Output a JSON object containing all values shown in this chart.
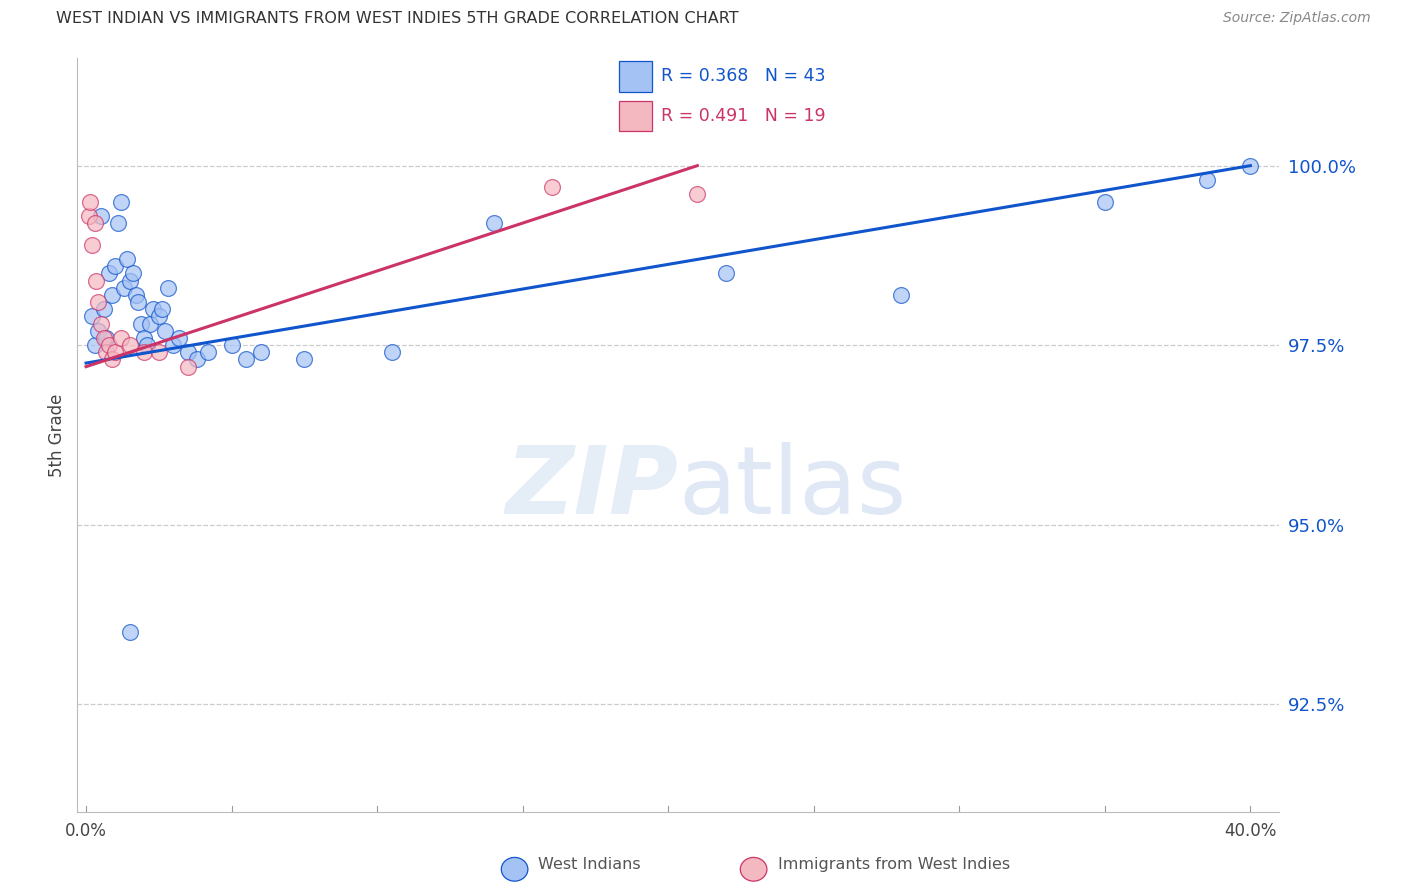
{
  "title": "WEST INDIAN VS IMMIGRANTS FROM WEST INDIES 5TH GRADE CORRELATION CHART",
  "source": "Source: ZipAtlas.com",
  "ylabel": "5th Grade",
  "ytick_values": [
    100.0,
    97.5,
    95.0,
    92.5
  ],
  "ymin": 91.0,
  "ymax": 101.5,
  "xmin": -0.3,
  "xmax": 41.0,
  "blue_color": "#a4c2f4",
  "pink_color": "#f4b8c1",
  "line_blue": "#1155cc",
  "line_pink": "#cc3366",
  "blue_scatter_x": [
    0.2,
    0.3,
    0.4,
    0.5,
    0.6,
    0.7,
    0.8,
    0.9,
    1.0,
    1.1,
    1.2,
    1.3,
    1.4,
    1.5,
    1.6,
    1.7,
    1.8,
    1.9,
    2.0,
    2.1,
    2.2,
    2.3,
    2.5,
    2.6,
    2.7,
    2.8,
    3.0,
    3.2,
    3.5,
    3.8,
    4.2,
    5.0,
    6.0,
    7.5,
    10.5,
    14.0,
    22.0,
    28.0,
    35.0,
    38.5,
    40.0,
    5.5,
    1.5
  ],
  "blue_scatter_y": [
    97.9,
    97.5,
    97.7,
    99.3,
    98.0,
    97.6,
    98.5,
    98.2,
    98.6,
    99.2,
    99.5,
    98.3,
    98.7,
    98.4,
    98.5,
    98.2,
    98.1,
    97.8,
    97.6,
    97.5,
    97.8,
    98.0,
    97.9,
    98.0,
    97.7,
    98.3,
    97.5,
    97.6,
    97.4,
    97.3,
    97.4,
    97.5,
    97.4,
    97.3,
    97.4,
    99.2,
    98.5,
    98.2,
    99.5,
    99.8,
    100.0,
    97.3,
    93.5
  ],
  "pink_scatter_x": [
    0.1,
    0.15,
    0.2,
    0.3,
    0.35,
    0.4,
    0.5,
    0.6,
    0.7,
    0.8,
    0.9,
    1.0,
    1.2,
    1.5,
    2.0,
    2.5,
    3.5,
    16.0,
    21.0
  ],
  "pink_scatter_y": [
    99.3,
    99.5,
    98.9,
    99.2,
    98.4,
    98.1,
    97.8,
    97.6,
    97.4,
    97.5,
    97.3,
    97.4,
    97.6,
    97.5,
    97.4,
    97.4,
    97.2,
    99.7,
    99.6
  ],
  "blue_line_x0": 0.0,
  "blue_line_x1": 40.0,
  "blue_line_y0": 97.25,
  "blue_line_y1": 100.0,
  "pink_line_x0": 0.0,
  "pink_line_x1": 21.0,
  "pink_line_y0": 97.2,
  "pink_line_y1": 100.0
}
